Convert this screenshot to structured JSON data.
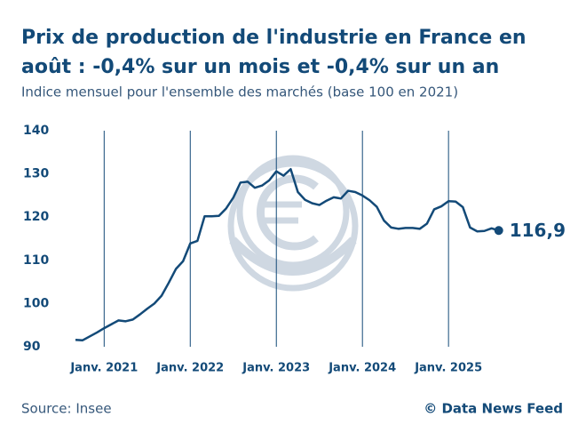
{
  "chart_data": {
    "type": "line",
    "title": [
      "Prix de production de l'industrie en France en",
      "août : -0,4% sur un mois et -0,4% sur un an"
    ],
    "subtitle": "Indice mensuel pour l'ensemble des marchés (base 100 en 2021)",
    "source": "Source: Insee",
    "credit": "© Data News Feed",
    "x": [
      "2020-09",
      "2020-10",
      "2020-11",
      "2020-12",
      "2021-01",
      "2021-02",
      "2021-03",
      "2021-04",
      "2021-05",
      "2021-06",
      "2021-07",
      "2021-08",
      "2021-09",
      "2021-10",
      "2021-11",
      "2021-12",
      "2022-01",
      "2022-02",
      "2022-03",
      "2022-04",
      "2022-05",
      "2022-06",
      "2022-07",
      "2022-08",
      "2022-09",
      "2022-10",
      "2022-11",
      "2022-12",
      "2023-01",
      "2023-02",
      "2023-03",
      "2023-04",
      "2023-05",
      "2023-06",
      "2023-07",
      "2023-08",
      "2023-09",
      "2023-10",
      "2023-11",
      "2023-12",
      "2024-01",
      "2024-02",
      "2024-03",
      "2024-04",
      "2024-05",
      "2024-06",
      "2024-07",
      "2024-08",
      "2024-09",
      "2024-10",
      "2024-11",
      "2024-12",
      "2025-01",
      "2025-02",
      "2025-03",
      "2025-04",
      "2025-05",
      "2025-06",
      "2025-07",
      "2025-08"
    ],
    "series": [
      {
        "color": "#134a78",
        "values": [
          91.6,
          91.5,
          92.4,
          93.3,
          94.3,
          95.2,
          96.1,
          95.9,
          96.3,
          97.5,
          98.8,
          100.0,
          101.8,
          104.8,
          108.0,
          109.8,
          113.9,
          114.5,
          120.2,
          120.2,
          120.3,
          122.0,
          124.5,
          128.0,
          128.2,
          126.8,
          127.3,
          128.5,
          130.6,
          129.6,
          131.1,
          125.8,
          124.0,
          123.2,
          122.8,
          123.8,
          124.6,
          124.3,
          126.1,
          125.8,
          125.0,
          123.9,
          122.4,
          119.2,
          117.6,
          117.3,
          117.5,
          117.5,
          117.3,
          118.5,
          121.8,
          122.5,
          123.7,
          123.6,
          122.3,
          117.6,
          116.7,
          116.8,
          117.4,
          116.9
        ],
        "value_labels": [
          null,
          null,
          null,
          null,
          null,
          null,
          null,
          null,
          null,
          null,
          null,
          null,
          null,
          null,
          null,
          null,
          null,
          null,
          null,
          null,
          null,
          null,
          null,
          null,
          null,
          null,
          null,
          null,
          null,
          null,
          null,
          null,
          null,
          null,
          null,
          null,
          null,
          null,
          null,
          null,
          null,
          null,
          null,
          null,
          null,
          null,
          null,
          null,
          null,
          null,
          null,
          null,
          null,
          null,
          null,
          null,
          null,
          null,
          null,
          "116,9"
        ]
      }
    ],
    "ylim": [
      90,
      140
    ],
    "yticks": [
      90,
      100,
      110,
      120,
      130,
      140
    ],
    "xticks": [
      {
        "value": "2021-01",
        "label": "Janv. 2021"
      },
      {
        "value": "2022-01",
        "label": "Janv. 2022"
      },
      {
        "value": "2023-01",
        "label": "Janv. 2023"
      },
      {
        "value": "2024-01",
        "label": "Janv. 2024"
      },
      {
        "value": "2025-01",
        "label": "Janv. 2025"
      }
    ],
    "grid": true
  }
}
